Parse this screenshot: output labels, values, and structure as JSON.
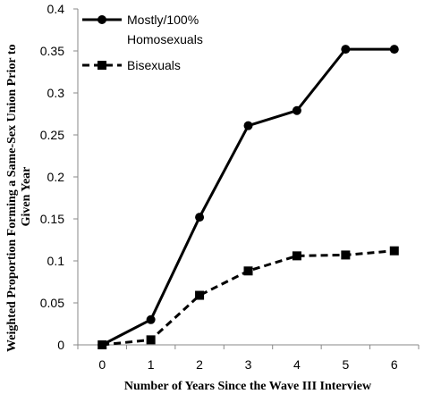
{
  "chart_data": {
    "type": "line",
    "xlabel": "Number of Years Since the Wave III Interview",
    "ylabel": "Weighted Proportion Forming a Same-Sex Union Prior to Given Year",
    "ylabel_lines": [
      "Weighted Proportion Forming a Same-Sex Union Prior to",
      "Given Year"
    ],
    "x": [
      0,
      1,
      2,
      3,
      4,
      5,
      6
    ],
    "xlim": [
      -0.5,
      6.5
    ],
    "ylim": [
      0,
      0.4
    ],
    "yticks": [
      "0",
      "0.05",
      "0.1",
      "0.15",
      "0.2",
      "0.25",
      "0.3",
      "0.35",
      "0.4"
    ],
    "xticks": [
      "0",
      "1",
      "2",
      "3",
      "4",
      "5",
      "6"
    ],
    "grid": false,
    "legend_position": "top-left",
    "series": [
      {
        "name": "Mostly/100% Homosexuals",
        "legend_lines": [
          "Mostly/100%",
          "Homosexuals"
        ],
        "values": [
          0.0,
          0.03,
          0.152,
          0.261,
          0.279,
          0.352,
          0.352
        ],
        "marker": "circle",
        "line_style": "solid",
        "color": "#000000"
      },
      {
        "name": "Bisexuals",
        "legend_lines": [
          "Bisexuals"
        ],
        "values": [
          0.0,
          0.006,
          0.059,
          0.088,
          0.106,
          0.107,
          0.112
        ],
        "marker": "square",
        "line_style": "dashed",
        "color": "#000000"
      }
    ]
  }
}
